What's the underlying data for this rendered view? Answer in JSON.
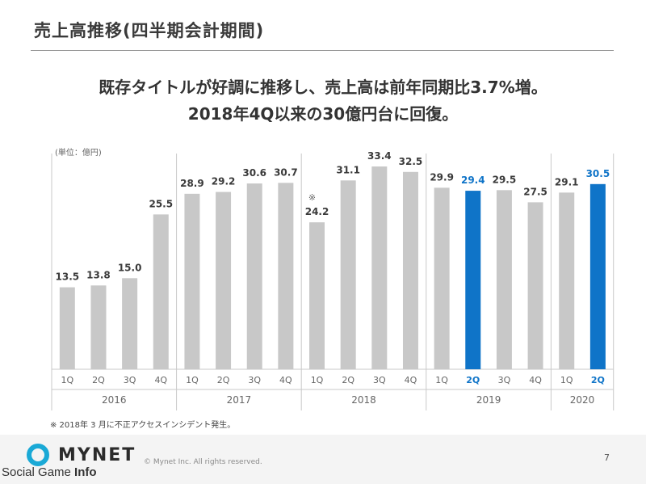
{
  "header": {
    "title": "売上高推移(四半期会計期間)",
    "headline_line1": "既存タイトルが好調に推移し、売上高は前年同期比3.7%増。",
    "headline_line2": "2018年4Q以来の30億円台に回復。"
  },
  "chart_data": {
    "type": "bar",
    "unit_label": "(単位：億円)",
    "categories": [
      "1Q",
      "2Q",
      "3Q",
      "4Q",
      "1Q",
      "2Q",
      "3Q",
      "4Q",
      "1Q",
      "2Q",
      "3Q",
      "4Q",
      "1Q",
      "2Q",
      "3Q",
      "4Q",
      "1Q",
      "2Q"
    ],
    "years": [
      {
        "label": "2016",
        "start": 0,
        "count": 4
      },
      {
        "label": "2017",
        "start": 4,
        "count": 4
      },
      {
        "label": "2018",
        "start": 8,
        "count": 4
      },
      {
        "label": "2019",
        "start": 12,
        "count": 4
      },
      {
        "label": "2020",
        "start": 16,
        "count": 2
      }
    ],
    "values": [
      13.5,
      13.8,
      15.0,
      25.5,
      28.9,
      29.2,
      30.6,
      30.7,
      24.2,
      31.1,
      33.4,
      32.5,
      29.9,
      29.4,
      29.5,
      27.5,
      29.1,
      30.5
    ],
    "value_labels": [
      "13.5",
      "13.8",
      "15.0",
      "25.5",
      "28.9",
      "29.2",
      "30.6",
      "30.7",
      "24.2",
      "31.1",
      "33.4",
      "32.5",
      "29.9",
      "29.4",
      "29.5",
      "27.5",
      "29.1",
      "30.5"
    ],
    "highlight_indices": [
      13,
      17
    ],
    "annotations": [
      {
        "index": 8,
        "text": "※"
      }
    ],
    "ylim": [
      0,
      35
    ],
    "colors": {
      "default": "#c8c8c8",
      "highlight": "#0f74c8",
      "label": "#3a3a3a",
      "highlight_label": "#0f74c8",
      "axis": "#c9c9c9"
    },
    "grid": false
  },
  "footnote": "※ 2018年 3 月に不正アクセスインシデント発生。",
  "footer": {
    "logo_text": "MYNET",
    "copyright": "© Mynet Inc. All rights reserved.",
    "page_number": "7",
    "watermark_1": "Social Game ",
    "watermark_2": "Info"
  }
}
